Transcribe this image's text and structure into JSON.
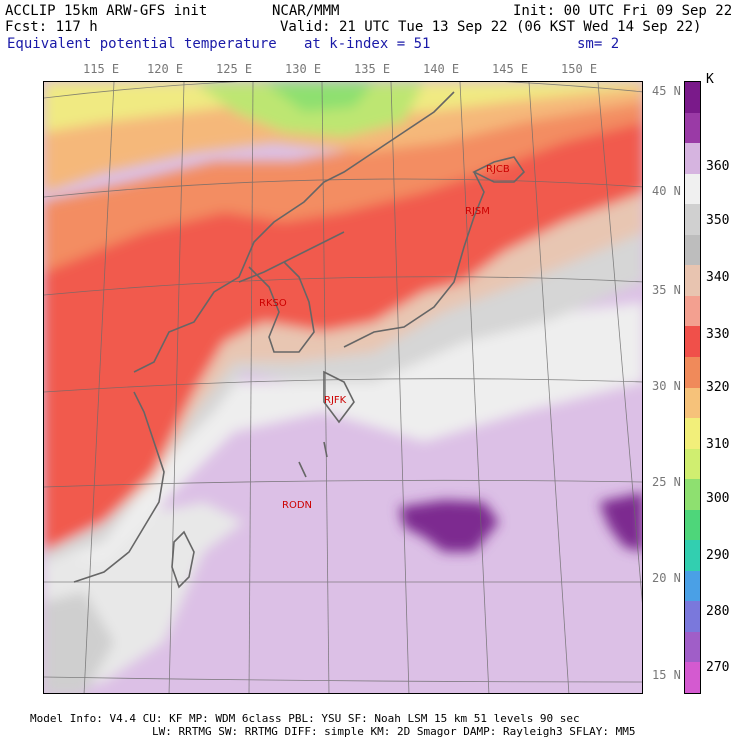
{
  "header": {
    "line1_left": "ACCLIP 15km ARW-GFS init",
    "line1_center": "NCAR/MMM",
    "line1_right": "Init: 00 UTC Fri 09 Sep 22",
    "line2_left": "Fcst:  117 h",
    "line2_right": "Valid: 21 UTC Tue 13 Sep 22 (06 KST Wed 14 Sep 22)",
    "line3_left": "Equivalent potential temperature",
    "line3_center": "at k-index =  51",
    "line3_right": "sm= 2"
  },
  "map": {
    "lon_ticks": [
      "115 E",
      "120 E",
      "125 E",
      "130 E",
      "135 E",
      "140 E",
      "145 E",
      "150 E"
    ],
    "lat_ticks": [
      "45 N",
      "40 N",
      "35 N",
      "30 N",
      "25 N",
      "20 N",
      "15 N"
    ],
    "stations": [
      "RJCB",
      "RJSM",
      "RKSO",
      "RJFK",
      "RODN"
    ]
  },
  "colorbar": {
    "unit": "K",
    "labels": [
      "360",
      "350",
      "340",
      "330",
      "320",
      "310",
      "300",
      "290",
      "280",
      "270"
    ],
    "colors": [
      "#7a1a8a",
      "#9a3aa6",
      "#d6b4e0",
      "#f0f0f0",
      "#d0d0d0",
      "#bdbdbd",
      "#e8c4b0",
      "#f3a090",
      "#f0504a",
      "#f08a5a",
      "#f6c27a",
      "#f2ef7a",
      "#d0ee70",
      "#8ee070",
      "#4ed67a",
      "#32cfb0",
      "#4aa0e6",
      "#7a78dc",
      "#a05ec8",
      "#d45ad0"
    ]
  },
  "footer": {
    "line1": "Model Info: V4.4      CU: KF     MP: WDM 6class  PBL: YSU       SF: Noah LSM      15 km    51 levels   90 sec",
    "line2": "LW: RRTMG     SW: RRTMG  DIFF: simple KM: 2D Smagor DAMP: Rayleigh3  SFLAY: MM5"
  }
}
